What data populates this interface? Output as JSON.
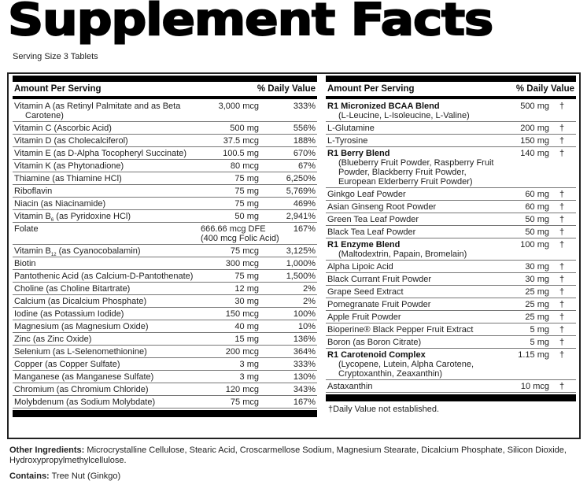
{
  "title": "Supplement Facts",
  "serving_size": "Serving Size 3 Tablets",
  "header": {
    "amount": "Amount Per Serving",
    "dv": "% Daily Value"
  },
  "left_rows": [
    {
      "name": "Vitamin A (as Retinyl Palmitate and as Beta",
      "name2": "Carotene)",
      "amount": "3,000 mcg",
      "dv": "333%"
    },
    {
      "name": "Vitamin C (Ascorbic Acid)",
      "amount": "500 mg",
      "dv": "556%"
    },
    {
      "name": "Vitamin D (as Cholecalciferol)",
      "amount": "37.5 mcg",
      "dv": "188%"
    },
    {
      "name": "Vitamin E (as D-Alpha Tocopheryl Succinate)",
      "amount": "100.5 mg",
      "dv": "670%"
    },
    {
      "name": "Vitamin K (as Phytonadione)",
      "amount": "80 mcg",
      "dv": "67%"
    },
    {
      "name": "Thiamine (as Thiamine HCl)",
      "amount": "75 mg",
      "dv": "6,250%"
    },
    {
      "name": "Riboflavin",
      "amount": "75 mg",
      "dv": "5,769%"
    },
    {
      "name": "Niacin (as Niacinamide)",
      "amount": "75 mg",
      "dv": "469%"
    },
    {
      "name_pre": "Vitamin B",
      "name_sub": "6",
      "name_post": " (as Pyridoxine HCl)",
      "amount": "50 mg",
      "dv": "2,941%"
    },
    {
      "name": "Folate",
      "amount": "666.66 mcg DFE",
      "amount2": "(400 mcg Folic Acid)",
      "dv": "167%"
    },
    {
      "name_pre": "Vitamin B",
      "name_sub": "12",
      "name_post": " (as Cyanocobalamin)",
      "amount": "75 mcg",
      "dv": "3,125%"
    },
    {
      "name": "Biotin",
      "amount": "300 mcg",
      "dv": "1,000%"
    },
    {
      "name": "Pantothenic Acid (as Calcium-D-Pantothenate)",
      "amount": "75 mg",
      "dv": "1,500%"
    },
    {
      "name": "Choline (as Choline Bitartrate)",
      "amount": "12 mg",
      "dv": "2%"
    },
    {
      "name": "Calcium (as Dicalcium Phosphate)",
      "amount": "30 mg",
      "dv": "2%"
    },
    {
      "name": "Iodine (as Potassium Iodide)",
      "amount": "150 mcg",
      "dv": "100%"
    },
    {
      "name": "Magnesium (as Magnesium Oxide)",
      "amount": "40 mg",
      "dv": "10%"
    },
    {
      "name": "Zinc (as Zinc Oxide)",
      "amount": "15 mg",
      "dv": "136%"
    },
    {
      "name": "Selenium (as L-Selenomethionine)",
      "amount": "200 mcg",
      "dv": "364%"
    },
    {
      "name": "Copper (as Copper Sulfate)",
      "amount": "3 mg",
      "dv": "333%"
    },
    {
      "name": "Manganese (as Manganese Sulfate)",
      "amount": "3 mg",
      "dv": "130%"
    },
    {
      "name": "Chromium (as Chromium Chloride)",
      "amount": "120 mcg",
      "dv": "343%"
    },
    {
      "name": "Molybdenum (as Sodium Molybdate)",
      "amount": "75 mcg",
      "dv": "167%"
    }
  ],
  "right_rows": [
    {
      "name": "R1 Micronized BCAA Blend",
      "bold": true,
      "sub": "(L-Leucine, L-Isoleucine, L-Valine)",
      "amount": "500 mg",
      "dv": "†"
    },
    {
      "name": "L-Glutamine",
      "amount": "200 mg",
      "dv": "†"
    },
    {
      "name": "L-Tyrosine",
      "amount": "150 mg",
      "dv": "†"
    },
    {
      "name": "R1 Berry Blend",
      "bold": true,
      "sub": "(Blueberry Fruit Powder, Raspberry Fruit Powder, Blackberry Fruit Powder, European Elderberry Fruit Powder)",
      "amount": "140 mg",
      "dv": "†"
    },
    {
      "name": "Ginkgo Leaf Powder",
      "amount": "60 mg",
      "dv": "†"
    },
    {
      "name": "Asian Ginseng Root Powder",
      "amount": "60 mg",
      "dv": "†"
    },
    {
      "name": "Green Tea Leaf Powder",
      "amount": "50 mg",
      "dv": "†"
    },
    {
      "name": "Black Tea Leaf Powder",
      "amount": "50 mg",
      "dv": "†"
    },
    {
      "name": "R1 Enzyme Blend",
      "bold": true,
      "sub": "(Maltodextrin, Papain, Bromelain)",
      "amount": "100 mg",
      "dv": "†"
    },
    {
      "name": "Alpha Lipoic Acid",
      "amount": "30 mg",
      "dv": "†"
    },
    {
      "name": "Black Currant Fruit Powder",
      "amount": "30 mg",
      "dv": "†"
    },
    {
      "name": "Grape Seed Extract",
      "amount": "25 mg",
      "dv": "†"
    },
    {
      "name": "Pomegranate Fruit Powder",
      "amount": "25 mg",
      "dv": "†"
    },
    {
      "name": "Apple Fruit Powder",
      "amount": "25 mg",
      "dv": "†"
    },
    {
      "name": "Bioperine® Black Pepper Fruit Extract",
      "amount": "5 mg",
      "dv": "†"
    },
    {
      "name": "Boron (as Boron Citrate)",
      "amount": "5 mg",
      "dv": "†"
    },
    {
      "name": "R1 Carotenoid Complex",
      "bold": true,
      "sub": "(Lycopene, Lutein, Alpha Carotene, Cryptoxanthin, Zeaxanthin)",
      "amount": "1.15 mg",
      "dv": "†"
    },
    {
      "name": "Astaxanthin",
      "amount": "10 mcg",
      "dv": "†"
    }
  ],
  "footnote": "†Daily Value not established.",
  "other_ingredients": {
    "label": "Other Ingredients:",
    "text": " Microcrystalline Cellulose, Stearic Acid, Croscarmellose Sodium, Magnesium Stearate, Dicalcium Phosphate, Silicon Dioxide, Hydroxypropylmethylcellulose."
  },
  "contains": {
    "label": "Contains:",
    "text": " Tree Nut (Ginkgo)"
  }
}
